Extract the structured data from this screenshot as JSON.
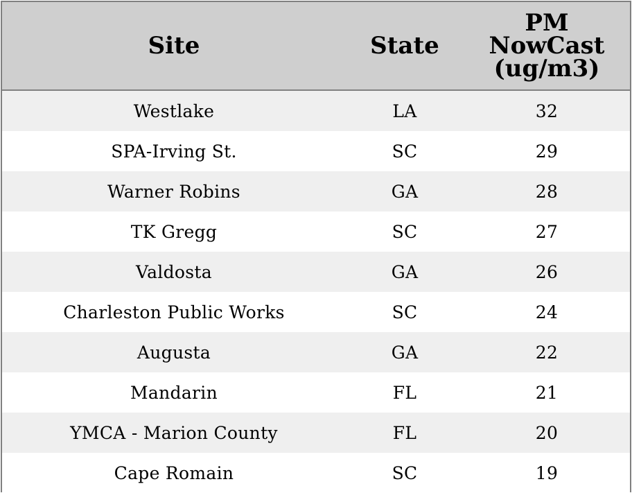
{
  "table": {
    "headers": {
      "site": "Site",
      "state": "State",
      "pm": "PM\nNowCast\n(ug/m3)"
    },
    "rows": [
      {
        "site": "Westlake",
        "state": "LA",
        "pm": "32"
      },
      {
        "site": "SPA-Irving St.",
        "state": "SC",
        "pm": "29"
      },
      {
        "site": "Warner Robins",
        "state": "GA",
        "pm": "28"
      },
      {
        "site": "TK Gregg",
        "state": "SC",
        "pm": "27"
      },
      {
        "site": "Valdosta",
        "state": "GA",
        "pm": "26"
      },
      {
        "site": "Charleston Public Works",
        "state": "SC",
        "pm": "24"
      },
      {
        "site": "Augusta",
        "state": "GA",
        "pm": "22"
      },
      {
        "site": "Mandarin",
        "state": "FL",
        "pm": "21"
      },
      {
        "site": "YMCA - Marion County",
        "state": "FL",
        "pm": "20"
      },
      {
        "site": "Cape Romain",
        "state": "SC",
        "pm": "19"
      }
    ]
  },
  "chart_data": {
    "type": "table",
    "columns": [
      "Site",
      "State",
      "PM\nNowCast\n(ug/m3)"
    ],
    "rows": [
      [
        "Westlake",
        "LA",
        32
      ],
      [
        "SPA-Irving St.",
        "SC",
        29
      ],
      [
        "Warner Robins",
        "GA",
        28
      ],
      [
        "TK Gregg",
        "SC",
        27
      ],
      [
        "Valdosta",
        "GA",
        26
      ],
      [
        "Charleston Public Works",
        "SC",
        24
      ],
      [
        "Augusta",
        "GA",
        22
      ],
      [
        "Mandarin",
        "FL",
        21
      ],
      [
        "YMCA - Marion County",
        "FL",
        20
      ],
      [
        "Cape Romain",
        "SC",
        19
      ]
    ]
  },
  "colors": {
    "header_bg": "#cfcfcf",
    "stripe_bg": "#efefef",
    "row_bg": "#ffffff",
    "border": "#808080"
  }
}
